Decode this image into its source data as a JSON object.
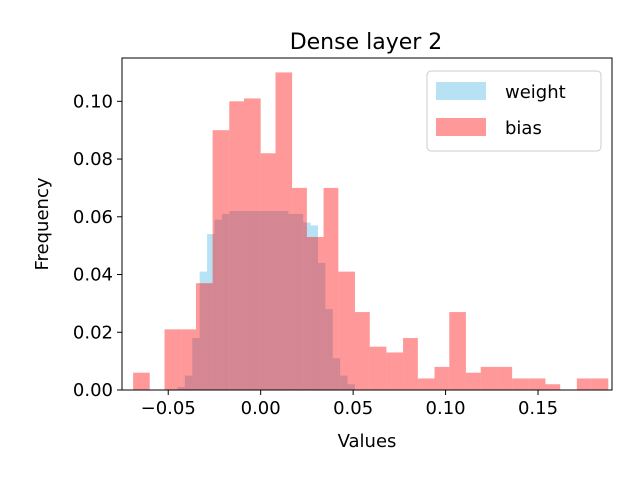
{
  "chart_data": {
    "type": "histogram",
    "title": "Dense layer 2",
    "xlabel": "Values",
    "ylabel": "Frequency",
    "xlim": [
      -0.075,
      0.19
    ],
    "ylim": [
      0,
      0.115
    ],
    "x_ticks": [
      -0.05,
      0.0,
      0.05,
      0.1,
      0.15
    ],
    "x_tick_labels": [
      "−0.05",
      "0.00",
      "0.05",
      "0.10",
      "0.15"
    ],
    "y_ticks": [
      0.0,
      0.02,
      0.04,
      0.06,
      0.08,
      0.1
    ],
    "y_tick_labels": [
      "0.00",
      "0.02",
      "0.04",
      "0.06",
      "0.08",
      "0.10"
    ],
    "legend_position": "upper-right",
    "grid": false,
    "series": [
      {
        "name": "weight",
        "color": "#87ceeb",
        "opacity": 0.6,
        "bins": [
          {
            "x0": -0.045,
            "x1": -0.041,
            "y": 0.001
          },
          {
            "x0": -0.041,
            "x1": -0.037,
            "y": 0.005
          },
          {
            "x0": -0.037,
            "x1": -0.033,
            "y": 0.018
          },
          {
            "x0": -0.033,
            "x1": -0.029,
            "y": 0.041
          },
          {
            "x0": -0.029,
            "x1": -0.025,
            "y": 0.054
          },
          {
            "x0": -0.025,
            "x1": -0.021,
            "y": 0.059
          },
          {
            "x0": -0.021,
            "x1": -0.017,
            "y": 0.061
          },
          {
            "x0": -0.017,
            "x1": -0.013,
            "y": 0.062
          },
          {
            "x0": -0.013,
            "x1": -0.009,
            "y": 0.062
          },
          {
            "x0": -0.009,
            "x1": -0.005,
            "y": 0.062
          },
          {
            "x0": -0.005,
            "x1": -0.001,
            "y": 0.062
          },
          {
            "x0": -0.001,
            "x1": 0.003,
            "y": 0.062
          },
          {
            "x0": 0.003,
            "x1": 0.007,
            "y": 0.062
          },
          {
            "x0": 0.007,
            "x1": 0.011,
            "y": 0.062
          },
          {
            "x0": 0.011,
            "x1": 0.015,
            "y": 0.062
          },
          {
            "x0": 0.015,
            "x1": 0.019,
            "y": 0.061
          },
          {
            "x0": 0.019,
            "x1": 0.023,
            "y": 0.061
          },
          {
            "x0": 0.023,
            "x1": 0.027,
            "y": 0.058
          },
          {
            "x0": 0.027,
            "x1": 0.031,
            "y": 0.057
          },
          {
            "x0": 0.031,
            "x1": 0.035,
            "y": 0.044
          },
          {
            "x0": 0.035,
            "x1": 0.039,
            "y": 0.028
          },
          {
            "x0": 0.039,
            "x1": 0.043,
            "y": 0.011
          },
          {
            "x0": 0.043,
            "x1": 0.047,
            "y": 0.005
          },
          {
            "x0": 0.047,
            "x1": 0.051,
            "y": 0.002
          }
        ]
      },
      {
        "name": "bias",
        "color": "#ff0000",
        "opacity": 0.4,
        "bins": [
          {
            "x0": -0.069,
            "x1": -0.06,
            "y": 0.006
          },
          {
            "x0": -0.06,
            "x1": -0.052,
            "y": 0.0
          },
          {
            "x0": -0.052,
            "x1": -0.043,
            "y": 0.021
          },
          {
            "x0": -0.043,
            "x1": -0.035,
            "y": 0.021
          },
          {
            "x0": -0.035,
            "x1": -0.026,
            "y": 0.037
          },
          {
            "x0": -0.026,
            "x1": -0.017,
            "y": 0.09
          },
          {
            "x0": -0.017,
            "x1": -0.009,
            "y": 0.1
          },
          {
            "x0": -0.009,
            "x1": 0.0,
            "y": 0.101
          },
          {
            "x0": 0.0,
            "x1": 0.008,
            "y": 0.082
          },
          {
            "x0": 0.008,
            "x1": 0.017,
            "y": 0.11
          },
          {
            "x0": 0.017,
            "x1": 0.025,
            "y": 0.07
          },
          {
            "x0": 0.025,
            "x1": 0.034,
            "y": 0.053
          },
          {
            "x0": 0.034,
            "x1": 0.042,
            "y": 0.07
          },
          {
            "x0": 0.042,
            "x1": 0.051,
            "y": 0.041
          },
          {
            "x0": 0.051,
            "x1": 0.059,
            "y": 0.027
          },
          {
            "x0": 0.059,
            "x1": 0.068,
            "y": 0.015
          },
          {
            "x0": 0.068,
            "x1": 0.077,
            "y": 0.013
          },
          {
            "x0": 0.077,
            "x1": 0.085,
            "y": 0.018
          },
          {
            "x0": 0.085,
            "x1": 0.094,
            "y": 0.004
          },
          {
            "x0": 0.094,
            "x1": 0.102,
            "y": 0.008
          },
          {
            "x0": 0.102,
            "x1": 0.111,
            "y": 0.027
          },
          {
            "x0": 0.111,
            "x1": 0.119,
            "y": 0.006
          },
          {
            "x0": 0.119,
            "x1": 0.128,
            "y": 0.008
          },
          {
            "x0": 0.128,
            "x1": 0.136,
            "y": 0.008
          },
          {
            "x0": 0.136,
            "x1": 0.145,
            "y": 0.004
          },
          {
            "x0": 0.145,
            "x1": 0.154,
            "y": 0.004
          },
          {
            "x0": 0.154,
            "x1": 0.162,
            "y": 0.002
          },
          {
            "x0": 0.162,
            "x1": 0.171,
            "y": 0.0
          },
          {
            "x0": 0.171,
            "x1": 0.179,
            "y": 0.004
          },
          {
            "x0": 0.179,
            "x1": 0.188,
            "y": 0.004
          }
        ]
      }
    ]
  }
}
